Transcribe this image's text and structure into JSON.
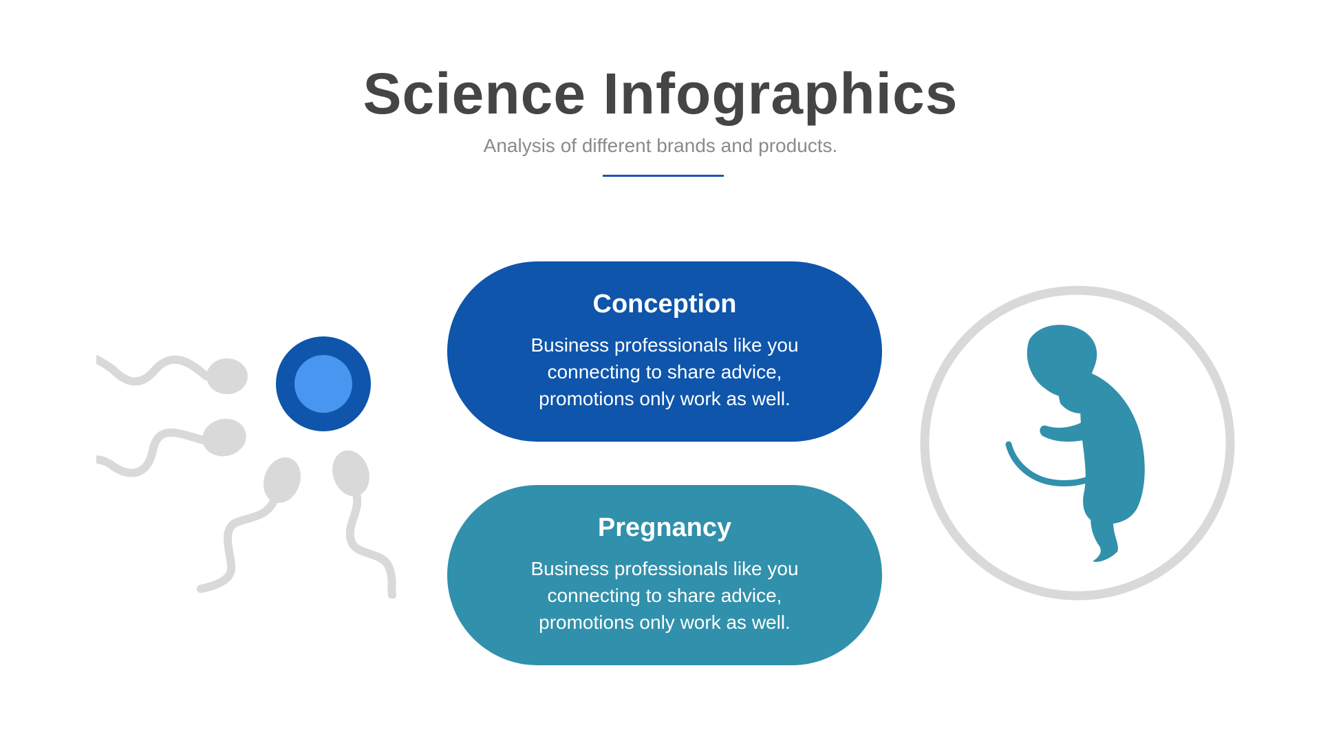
{
  "header": {
    "title": "Science Infographics",
    "subtitle": "Analysis of different brands and products."
  },
  "cards": [
    {
      "title": "Conception",
      "text": "Business professionals like you connecting to share advice, promotions only work as well."
    },
    {
      "title": "Pregnancy",
      "text": "Business professionals like you connecting to share advice, promotions only work as well."
    }
  ],
  "colors": {
    "conception": "#0e55ab",
    "pregnancy": "#3190ab",
    "egg_outer": "#0e55ab",
    "egg_inner": "#4896ef",
    "sperm": "#d9d9d9",
    "ring": "#d9d9d9",
    "fetus": "#3190ab"
  },
  "icons": [
    "sperm-icon",
    "egg-icon",
    "fetus-icon"
  ]
}
